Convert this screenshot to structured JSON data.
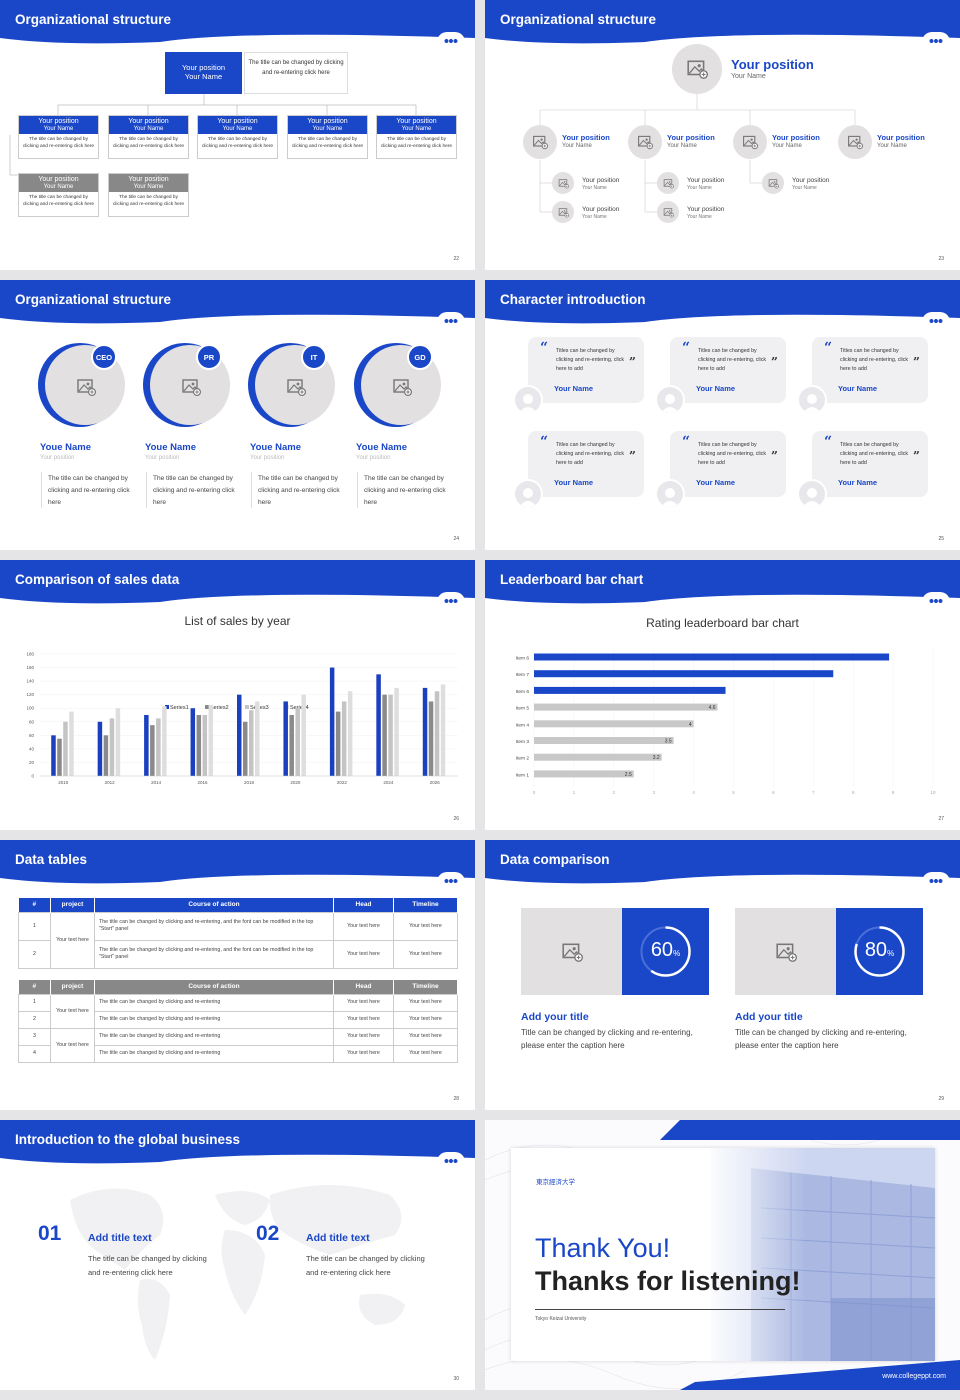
{
  "slides": {
    "s22": {
      "title": "Organizational structure",
      "page": "22",
      "top_box": {
        "pos": "Your position",
        "name": "Your Name",
        "desc": "The title can be changed by clicking and re-entering click here"
      },
      "nodes": [
        {
          "pos": "Your position",
          "name": "Your Name",
          "desc": "The title can be changed by clicking and re-entering click here"
        },
        {
          "pos": "Your position",
          "name": "Your Name",
          "desc": "The title can be changed by clicking and re-entering click here"
        },
        {
          "pos": "Your position",
          "name": "Your Name",
          "desc": "The title can be changed by clicking and re-entering click here"
        },
        {
          "pos": "Your position",
          "name": "Your Name",
          "desc": "The title can be changed by clicking and re-entering click here"
        },
        {
          "pos": "Your position",
          "name": "Your Name",
          "desc": "The title can be changed by clicking and re-entering click here"
        },
        {
          "pos": "Your position",
          "name": "Your Name",
          "desc": "The title can be changed by clicking and re-entering click here"
        },
        {
          "pos": "Your position",
          "name": "Your Name",
          "desc": "The title can be changed by clicking and re-entering click here"
        }
      ]
    },
    "s23": {
      "title": "Organizational structure",
      "page": "23",
      "top": {
        "pos": "Your position",
        "name": "Your Name"
      },
      "row": [
        {
          "pos": "Your position",
          "name": "Your Name"
        },
        {
          "pos": "Your position",
          "name": "Your Name"
        },
        {
          "pos": "Your position",
          "name": "Your Name"
        },
        {
          "pos": "Your position",
          "name": "Your Name"
        }
      ],
      "subs": [
        {
          "pos": "Your position",
          "name": "Your Name"
        },
        {
          "pos": "Your position",
          "name": "Your Name"
        },
        {
          "pos": "Your position",
          "name": "Your Name"
        },
        {
          "pos": "Your position",
          "name": "Your Name"
        },
        {
          "pos": "Your position",
          "name": "Your Name"
        }
      ]
    },
    "s24": {
      "title": "Organizational structure",
      "page": "24",
      "people": [
        {
          "badge": "CEO",
          "name": "Youe Name",
          "pos": "Your position",
          "desc": "The title can be changed by clicking and re-entering click here"
        },
        {
          "badge": "PR",
          "name": "Youe Name",
          "pos": "Your position",
          "desc": "The title can be changed by clicking and re-entering click here"
        },
        {
          "badge": "IT",
          "name": "Youe Name",
          "pos": "Your position",
          "desc": "The title can be changed by clicking and re-entering click here"
        },
        {
          "badge": "GD",
          "name": "Youe Name",
          "pos": "Your position",
          "desc": "The title can be changed by clicking and re-entering click here"
        }
      ]
    },
    "s25": {
      "title": "Character introduction",
      "page": "25",
      "quotes": [
        {
          "text": "Titles can be changed by clicking and re-entering, click here to add",
          "name": "Your Name"
        },
        {
          "text": "Titles can be changed by clicking and re-entering, click here to add",
          "name": "Your Name"
        },
        {
          "text": "Titles can be changed by clicking and re-entering, click here to add",
          "name": "Your Name"
        },
        {
          "text": "Titles can be changed by clicking and re-entering, click here to add",
          "name": "Your Name"
        },
        {
          "text": "Titles can be changed by clicking and re-entering, click here to add",
          "name": "Your Name"
        },
        {
          "text": "Titles can be changed by clicking and re-entering, click here to add",
          "name": "Your Name"
        }
      ]
    },
    "s26": {
      "title": "Comparison of sales data",
      "page": "26"
    },
    "s27": {
      "title": "Leaderboard bar chart",
      "page": "27"
    },
    "s28": {
      "title": "Data tables",
      "page": "28",
      "t1": {
        "headers": [
          "#",
          "project",
          "Course of action",
          "Head",
          "Timeline"
        ],
        "group": "Your text here",
        "rows": [
          {
            "n": "1",
            "c": "The title can be changed by clicking and re-entering, and the font can be modified in the top \"Start\" panel",
            "h": "Your text here",
            "t": "Your text here"
          },
          {
            "n": "2",
            "c": "The title can be changed by clicking and re-entering, and the font can be modified in the top \"Start\" panel",
            "h": "Your text here",
            "t": "Your text here"
          }
        ]
      },
      "t2": {
        "headers": [
          "#",
          "project",
          "Course of action",
          "Head",
          "Timeline"
        ],
        "groups": [
          "Your text here",
          "Your text here"
        ],
        "rows": [
          {
            "n": "1",
            "c": "The title can be changed by clicking and re-entering",
            "h": "Your text here",
            "t": "Your text here"
          },
          {
            "n": "2",
            "c": "The title can be changed by clicking and re-entering",
            "h": "Your text here",
            "t": "Your text here"
          },
          {
            "n": "3",
            "c": "The title can be changed by clicking and re-entering",
            "h": "Your text here",
            "t": "Your text here"
          },
          {
            "n": "4",
            "c": "The title can be changed by clicking and re-entering",
            "h": "Your text here",
            "t": "Your text here"
          }
        ]
      }
    },
    "s29": {
      "title": "Data comparison",
      "page": "29",
      "cards": [
        {
          "pct": "60",
          "unit": "%",
          "value": 0.6,
          "title": "Add your title",
          "desc": "Title can be changed by clicking and re-entering, please enter the caption here"
        },
        {
          "pct": "80",
          "unit": "%",
          "value": 0.8,
          "title": "Add your title",
          "desc": "Title can be changed by clicking and re-entering, please enter the caption here"
        }
      ]
    },
    "s30": {
      "title": "Introduction to the global business",
      "page": "30",
      "items": [
        {
          "num": "01",
          "title": "Add title text",
          "desc": "The title can be changed by clicking and re-entering click here"
        },
        {
          "num": "02",
          "title": "Add title text",
          "desc": "The title can be changed by clicking and re-entering click here"
        }
      ]
    },
    "s31": {
      "logo": "東京經済大学",
      "thanks": "Thank You!",
      "listen": "Thanks for listening!",
      "uni": "Tokyo Keizai University",
      "url": "www.collegeppt.com"
    }
  },
  "chart_data": [
    {
      "type": "bar",
      "title": "List of sales by year",
      "categories": [
        "2010",
        "2012",
        "2014",
        "2016",
        "2018",
        "2020",
        "2022",
        "2024",
        "2026"
      ],
      "ylim": [
        0,
        180
      ],
      "yticks": [
        "0",
        "20",
        "40",
        "60",
        "80",
        "100",
        "120",
        "140",
        "160",
        "180"
      ],
      "series": [
        {
          "name": "Series1",
          "color": "#1a3fbf",
          "values": [
            60,
            80,
            90,
            100,
            120,
            110,
            160,
            150,
            130
          ]
        },
        {
          "name": "Series2",
          "color": "#8a8a8a",
          "values": [
            55,
            60,
            75,
            90,
            80,
            90,
            95,
            120,
            110
          ]
        },
        {
          "name": "Series3",
          "color": "#c4c4c4",
          "values": [
            80,
            85,
            85,
            90,
            97,
            100,
            110,
            120,
            125
          ]
        },
        {
          "name": "Series4",
          "color": "#dedede",
          "values": [
            95,
            100,
            103,
            105,
            110,
            120,
            125,
            130,
            135
          ]
        }
      ]
    },
    {
      "type": "bar",
      "orientation": "horizontal",
      "title": "Rating leaderboard bar chart",
      "categories": [
        "Item 6",
        "Item 7",
        "Item 6",
        "Item 5",
        "Item 4",
        "Item 3",
        "Item 2",
        "Item 1"
      ],
      "values": [
        8.9,
        7.5,
        4.8,
        4.6,
        4,
        3.5,
        3.2,
        2.5
      ],
      "data_labels": [
        "",
        "",
        "",
        "4.6",
        "4",
        "3.5",
        "3.2",
        "2.5"
      ],
      "highlight": [
        true,
        true,
        true,
        false,
        false,
        false,
        false,
        false
      ],
      "xlim": [
        0,
        10
      ],
      "xticks": [
        "0",
        "1",
        "2",
        "3",
        "4",
        "5",
        "6",
        "7",
        "8",
        "9",
        "10"
      ]
    }
  ]
}
